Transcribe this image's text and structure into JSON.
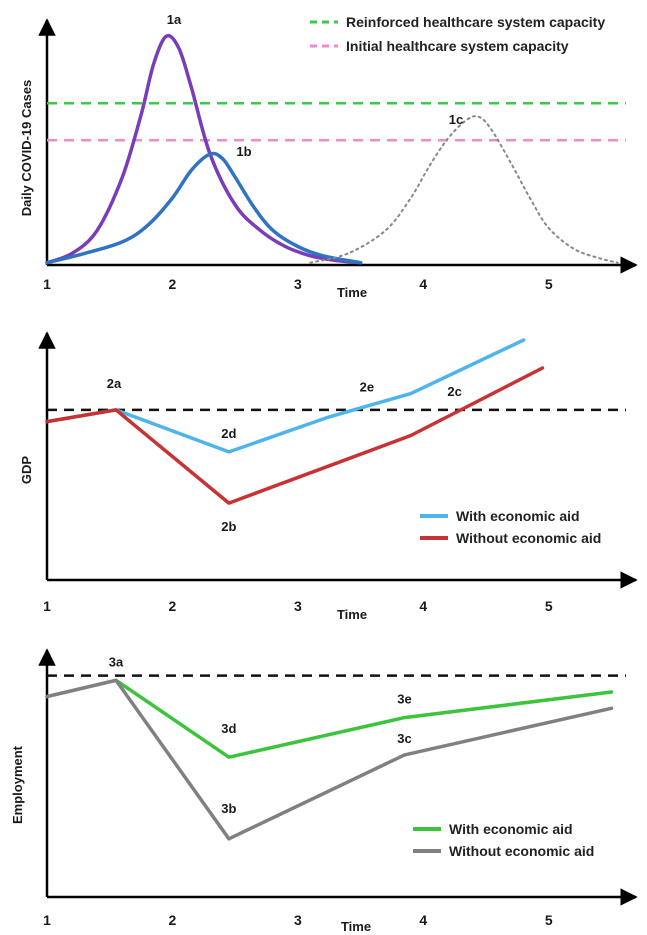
{
  "chart_data": [
    {
      "type": "line",
      "ylabel": "Daily COVID-19 Cases",
      "xlabel": "Time",
      "xticks": [
        "1",
        "2",
        "3",
        "4",
        "5"
      ],
      "xlim": [
        1,
        5.6
      ],
      "ylim": [
        0,
        100
      ],
      "legend_position": "top-right",
      "hlines": [
        {
          "name": "Reinforced healthcare system capacity",
          "y": 70,
          "color": "#3ec84a",
          "dash": true
        },
        {
          "name": "Initial healthcare system capacity",
          "y": 54,
          "color": "#f08ad0",
          "dash": true
        }
      ],
      "series": [
        {
          "label": "1a",
          "color": "#7a3cb8",
          "style": "solid",
          "x": [
            1.0,
            1.2,
            1.4,
            1.6,
            1.75,
            1.85,
            1.95,
            2.05,
            2.15,
            2.3,
            2.5,
            2.7,
            2.9,
            3.1,
            3.3,
            3.5
          ],
          "y": [
            1,
            5,
            15,
            38,
            65,
            87,
            99,
            94,
            77,
            48,
            26,
            15,
            8,
            4,
            2,
            1
          ]
        },
        {
          "label": "1b",
          "color": "#2f73c4",
          "style": "solid",
          "x": [
            1.0,
            1.3,
            1.6,
            1.8,
            2.0,
            2.15,
            2.3,
            2.4,
            2.5,
            2.65,
            2.8,
            3.0,
            3.2,
            3.5
          ],
          "y": [
            1,
            5,
            10,
            17,
            29,
            41,
            48,
            46,
            38,
            25,
            15,
            8,
            4,
            1
          ]
        },
        {
          "label": "1c",
          "color": "#888888",
          "style": "dotted",
          "x": [
            3.1,
            3.4,
            3.7,
            3.9,
            4.05,
            4.2,
            4.35,
            4.45,
            4.55,
            4.7,
            4.85,
            5.0,
            5.2,
            5.4,
            5.55
          ],
          "y": [
            1,
            5,
            15,
            29,
            43,
            55,
            63,
            64,
            58,
            44,
            29,
            16,
            7,
            3,
            1
          ]
        }
      ]
    },
    {
      "type": "line",
      "ylabel": "GDP",
      "xlabel": "Time",
      "xticks": [
        "1",
        "2",
        "3",
        "4",
        "5"
      ],
      "xlim": [
        1,
        5.6
      ],
      "ylim": [
        0,
        100
      ],
      "legend_position": "bottom-right",
      "hlines": [
        {
          "y": 73,
          "color": "#111111",
          "dash": true
        }
      ],
      "series": [
        {
          "name": "With economic aid",
          "color": "#4db5ec",
          "x": [
            1.0,
            1.55,
            2.45,
            3.25,
            3.9,
            4.8
          ],
          "y": [
            68,
            73,
            55,
            70,
            80,
            103
          ]
        },
        {
          "name": "Without economic aid",
          "color": "#c83232",
          "x": [
            1.0,
            1.55,
            2.45,
            3.35,
            3.9,
            4.95
          ],
          "y": [
            68,
            73,
            33,
            51,
            62,
            91
          ]
        }
      ],
      "annotations": [
        {
          "text": "2a",
          "x": 1.55,
          "y": 73
        },
        {
          "text": "2d",
          "x": 2.45,
          "y": 55
        },
        {
          "text": "2b",
          "x": 2.45,
          "y": 33
        },
        {
          "text": "2e",
          "x": 3.55,
          "y": 75
        },
        {
          "text": "2c",
          "x": 4.25,
          "y": 73
        }
      ]
    },
    {
      "type": "line",
      "ylabel": "Employment",
      "xlabel": "Time",
      "xticks": [
        "1",
        "2",
        "3",
        "4",
        "5"
      ],
      "xlim": [
        1,
        5.6
      ],
      "ylim": [
        0,
        100
      ],
      "legend_position": "bottom-right",
      "hlines": [
        {
          "y": 95,
          "color": "#111111",
          "dash": true
        }
      ],
      "series": [
        {
          "name": "With economic aid",
          "color": "#3cc43c",
          "x": [
            1.0,
            1.55,
            2.45,
            3.85,
            5.5
          ],
          "y": [
            86,
            93,
            60,
            77,
            88
          ]
        },
        {
          "name": "Without economic aid",
          "color": "#808080",
          "x": [
            1.0,
            1.55,
            2.45,
            3.85,
            5.5
          ],
          "y": [
            86,
            93,
            25,
            61,
            81
          ]
        }
      ],
      "annotations": [
        {
          "text": "3a",
          "x": 1.55,
          "y": 93
        },
        {
          "text": "3d",
          "x": 2.45,
          "y": 60
        },
        {
          "text": "3b",
          "x": 2.45,
          "y": 25
        },
        {
          "text": "3e",
          "x": 3.85,
          "y": 77
        },
        {
          "text": "3c",
          "x": 3.85,
          "y": 61
        }
      ]
    }
  ]
}
